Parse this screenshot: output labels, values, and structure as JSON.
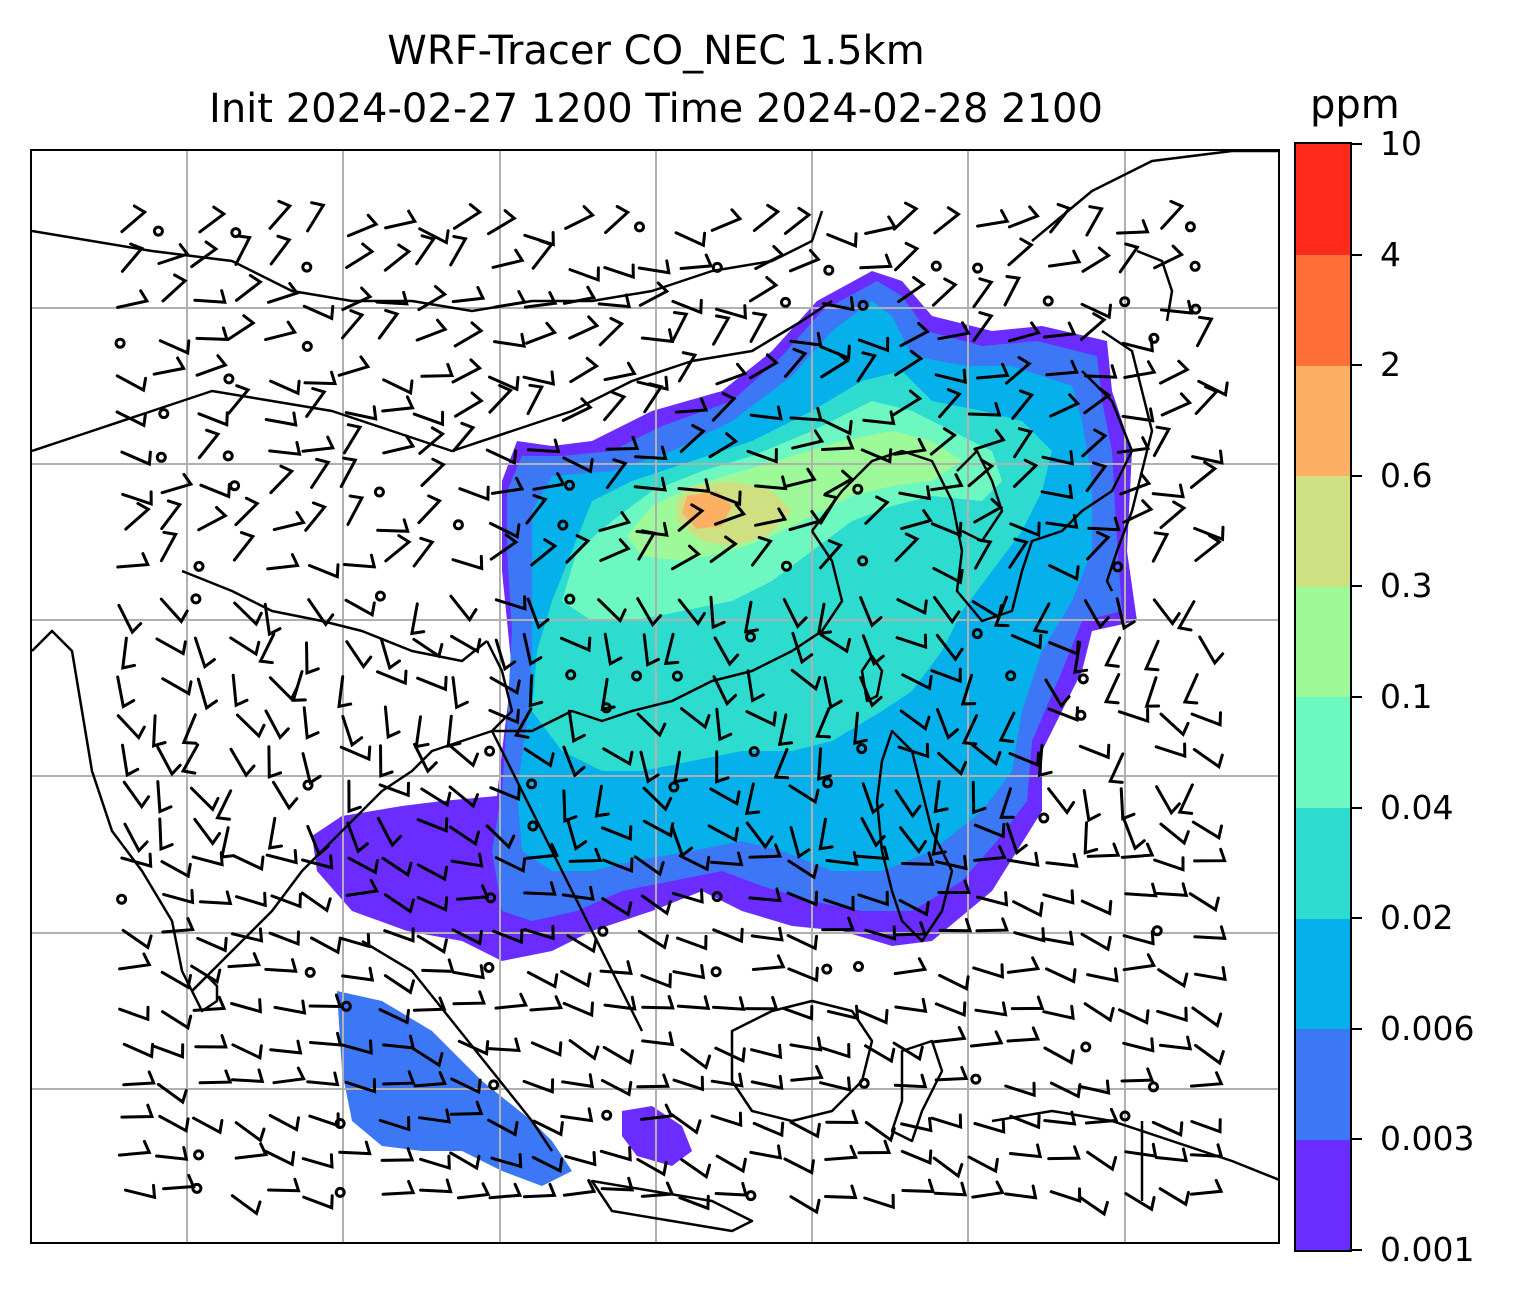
{
  "title": {
    "line1": "WRF-Tracer CO_NEC 1.5km",
    "line2": "Init 2024-02-27 1200 Time 2024-02-28 2100"
  },
  "colorbar": {
    "unit": "ppm",
    "levels": [
      "0.001",
      "0.003",
      "0.006",
      "0.02",
      "0.04",
      "0.1",
      "0.3",
      "0.6",
      "2",
      "4",
      "10"
    ],
    "colors": [
      "#6a2cff",
      "#3c78f5",
      "#06b0ea",
      "#2edccf",
      "#6cf8c0",
      "#9ef998",
      "#cfe083",
      "#fdb064",
      "#ff7038",
      "#ff2a1c"
    ]
  },
  "map": {
    "projection": "lat-lon",
    "gridlines": true,
    "coastline_color": "#000000",
    "gridline_color": "#b0b0b0",
    "wind_barbs": true
  }
}
